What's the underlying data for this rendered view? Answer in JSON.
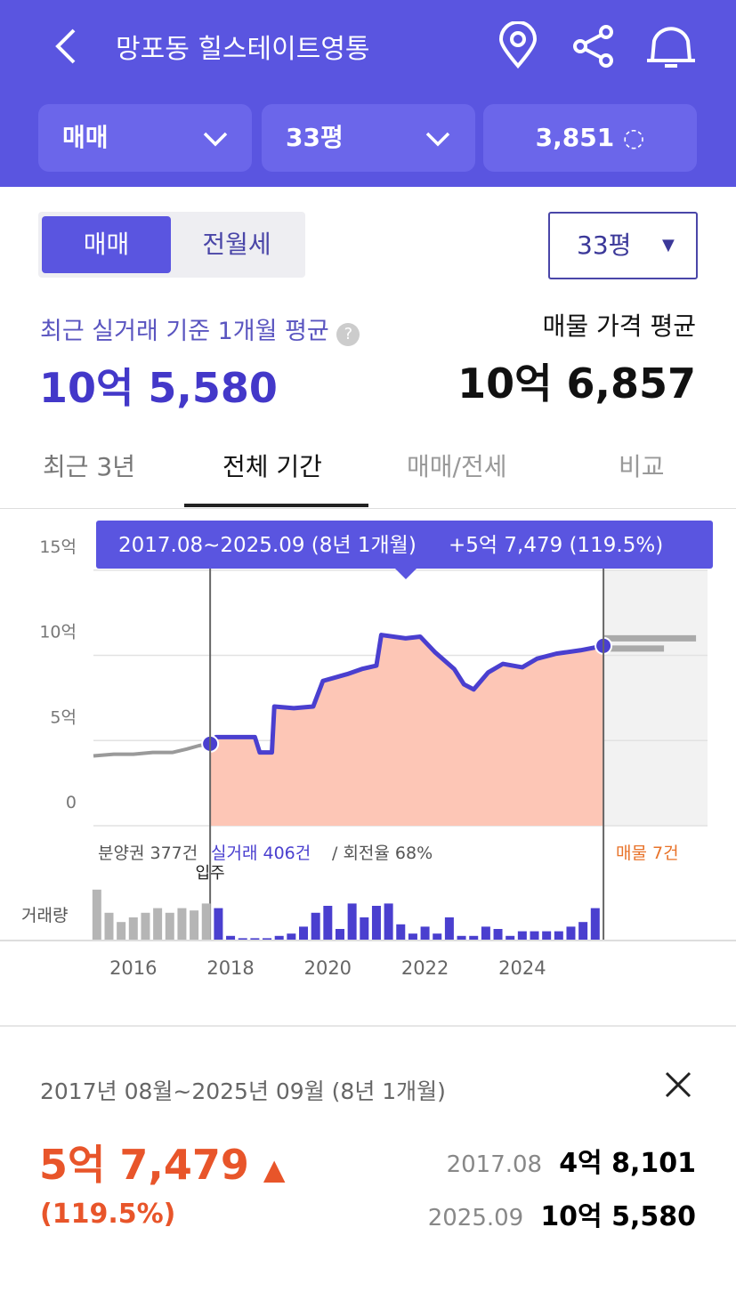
{
  "header": {
    "title": "망포동 힐스테이트영통"
  },
  "filters": [
    "매매",
    "33평",
    "3,851"
  ],
  "toggle": [
    "매매",
    "전월세"
  ],
  "size_select": "33평",
  "summary": {
    "left_label": "최근 실거래 기준 1개월 평균",
    "left_value": "10억 5,580",
    "right_label": "매물 가격 평균",
    "right_value": "10억 6,857"
  },
  "period_tabs": [
    "최근 3년",
    "전체 기간",
    "매매/전세",
    "비교"
  ],
  "chart_data": {
    "type": "line",
    "tooltip": "2017.08~2025.09 (8년 1개월)",
    "tooltip_change": "+5억 7,479 (119.5%)",
    "xlim": [
      2015.18,
      2027.81
    ],
    "xticks": [
      2016,
      2018,
      2020,
      2022,
      2024
    ],
    "ylim": [
      0,
      17.6
    ],
    "yticks": [
      0,
      {
        "value": 5,
        "label": "5억"
      },
      {
        "value": 10,
        "label": "10억"
      },
      {
        "value": 15,
        "label": "15억"
      }
    ],
    "grid": true,
    "annotations": {
      "presale": "분양권 377건",
      "deals": "실거래 406건",
      "turnover": "/ 회전율 68%",
      "listings": "매물 7건",
      "move_in": "입주",
      "volume_label": "거래량"
    },
    "series": [
      {
        "color": "#9a9a9a",
        "x": [
          2015.18,
          2015.6,
          2016,
          2016.4,
          2016.8,
          2017.1,
          2017.35,
          2017.58
        ],
        "values": [
          4.1,
          4.2,
          4.2,
          4.3,
          4.3,
          4.5,
          4.7,
          4.81
        ]
      },
      {
        "color": "#4a3fcf",
        "x": [
          2017.58,
          2017.7,
          2018.5,
          2018.6,
          2018.85,
          2018.9,
          2019.3,
          2019.7,
          2019.9,
          2020.4,
          2020.7,
          2021.0,
          2021.1,
          2021.6,
          2021.9,
          2022.2,
          2022.6,
          2022.8,
          2023.0,
          2023.3,
          2023.6,
          2024.0,
          2024.3,
          2024.7,
          2025.2,
          2025.67
        ],
        "values": [
          4.81,
          5.2,
          5.2,
          4.3,
          4.3,
          7.0,
          6.9,
          7.0,
          8.5,
          8.9,
          9.2,
          9.4,
          11.2,
          11.0,
          11.1,
          10.2,
          9.2,
          8.3,
          8.0,
          9.0,
          9.5,
          9.3,
          9.8,
          10.1,
          10.3,
          10.56
        ]
      }
    ],
    "listing_levels": [
      11.0,
      10.4
    ],
    "volume_series": [
      {
        "color": "#b5b5b5",
        "x": [
          2015.25,
          2015.5,
          2015.75,
          2016,
          2016.25,
          2016.5,
          2016.75,
          2017,
          2017.25,
          2017.5
        ],
        "values": [
          22,
          12,
          8,
          10,
          12,
          14,
          12,
          14,
          13,
          16
        ]
      },
      {
        "color": "#4a3fcf",
        "x": [
          2017.75,
          2018,
          2018.25,
          2018.5,
          2018.75,
          2019,
          2019.25,
          2019.5,
          2019.75,
          2020,
          2020.25,
          2020.5,
          2020.75,
          2021,
          2021.25,
          2021.5,
          2021.75,
          2022,
          2022.25,
          2022.5,
          2022.75,
          2023,
          2023.25,
          2023.5,
          2023.75,
          2024,
          2024.25,
          2024.5,
          2024.75,
          2025,
          2025.25,
          2025.5
        ],
        "values": [
          14,
          2,
          1,
          1,
          1,
          2,
          3,
          6,
          12,
          15,
          5,
          16,
          10,
          15,
          16,
          7,
          3,
          6,
          3,
          10,
          2,
          2,
          6,
          5,
          2,
          4,
          4,
          4,
          4,
          6,
          8,
          14
        ]
      }
    ]
  },
  "detail": {
    "period": "2017년 08월~2025년 09월 (8년 1개월)",
    "change": "5억 7,479",
    "change_pct": "(119.5%)",
    "rows": [
      [
        "2017.08",
        "4억 8,101"
      ],
      [
        "2025.09",
        "10억 5,580"
      ]
    ]
  }
}
